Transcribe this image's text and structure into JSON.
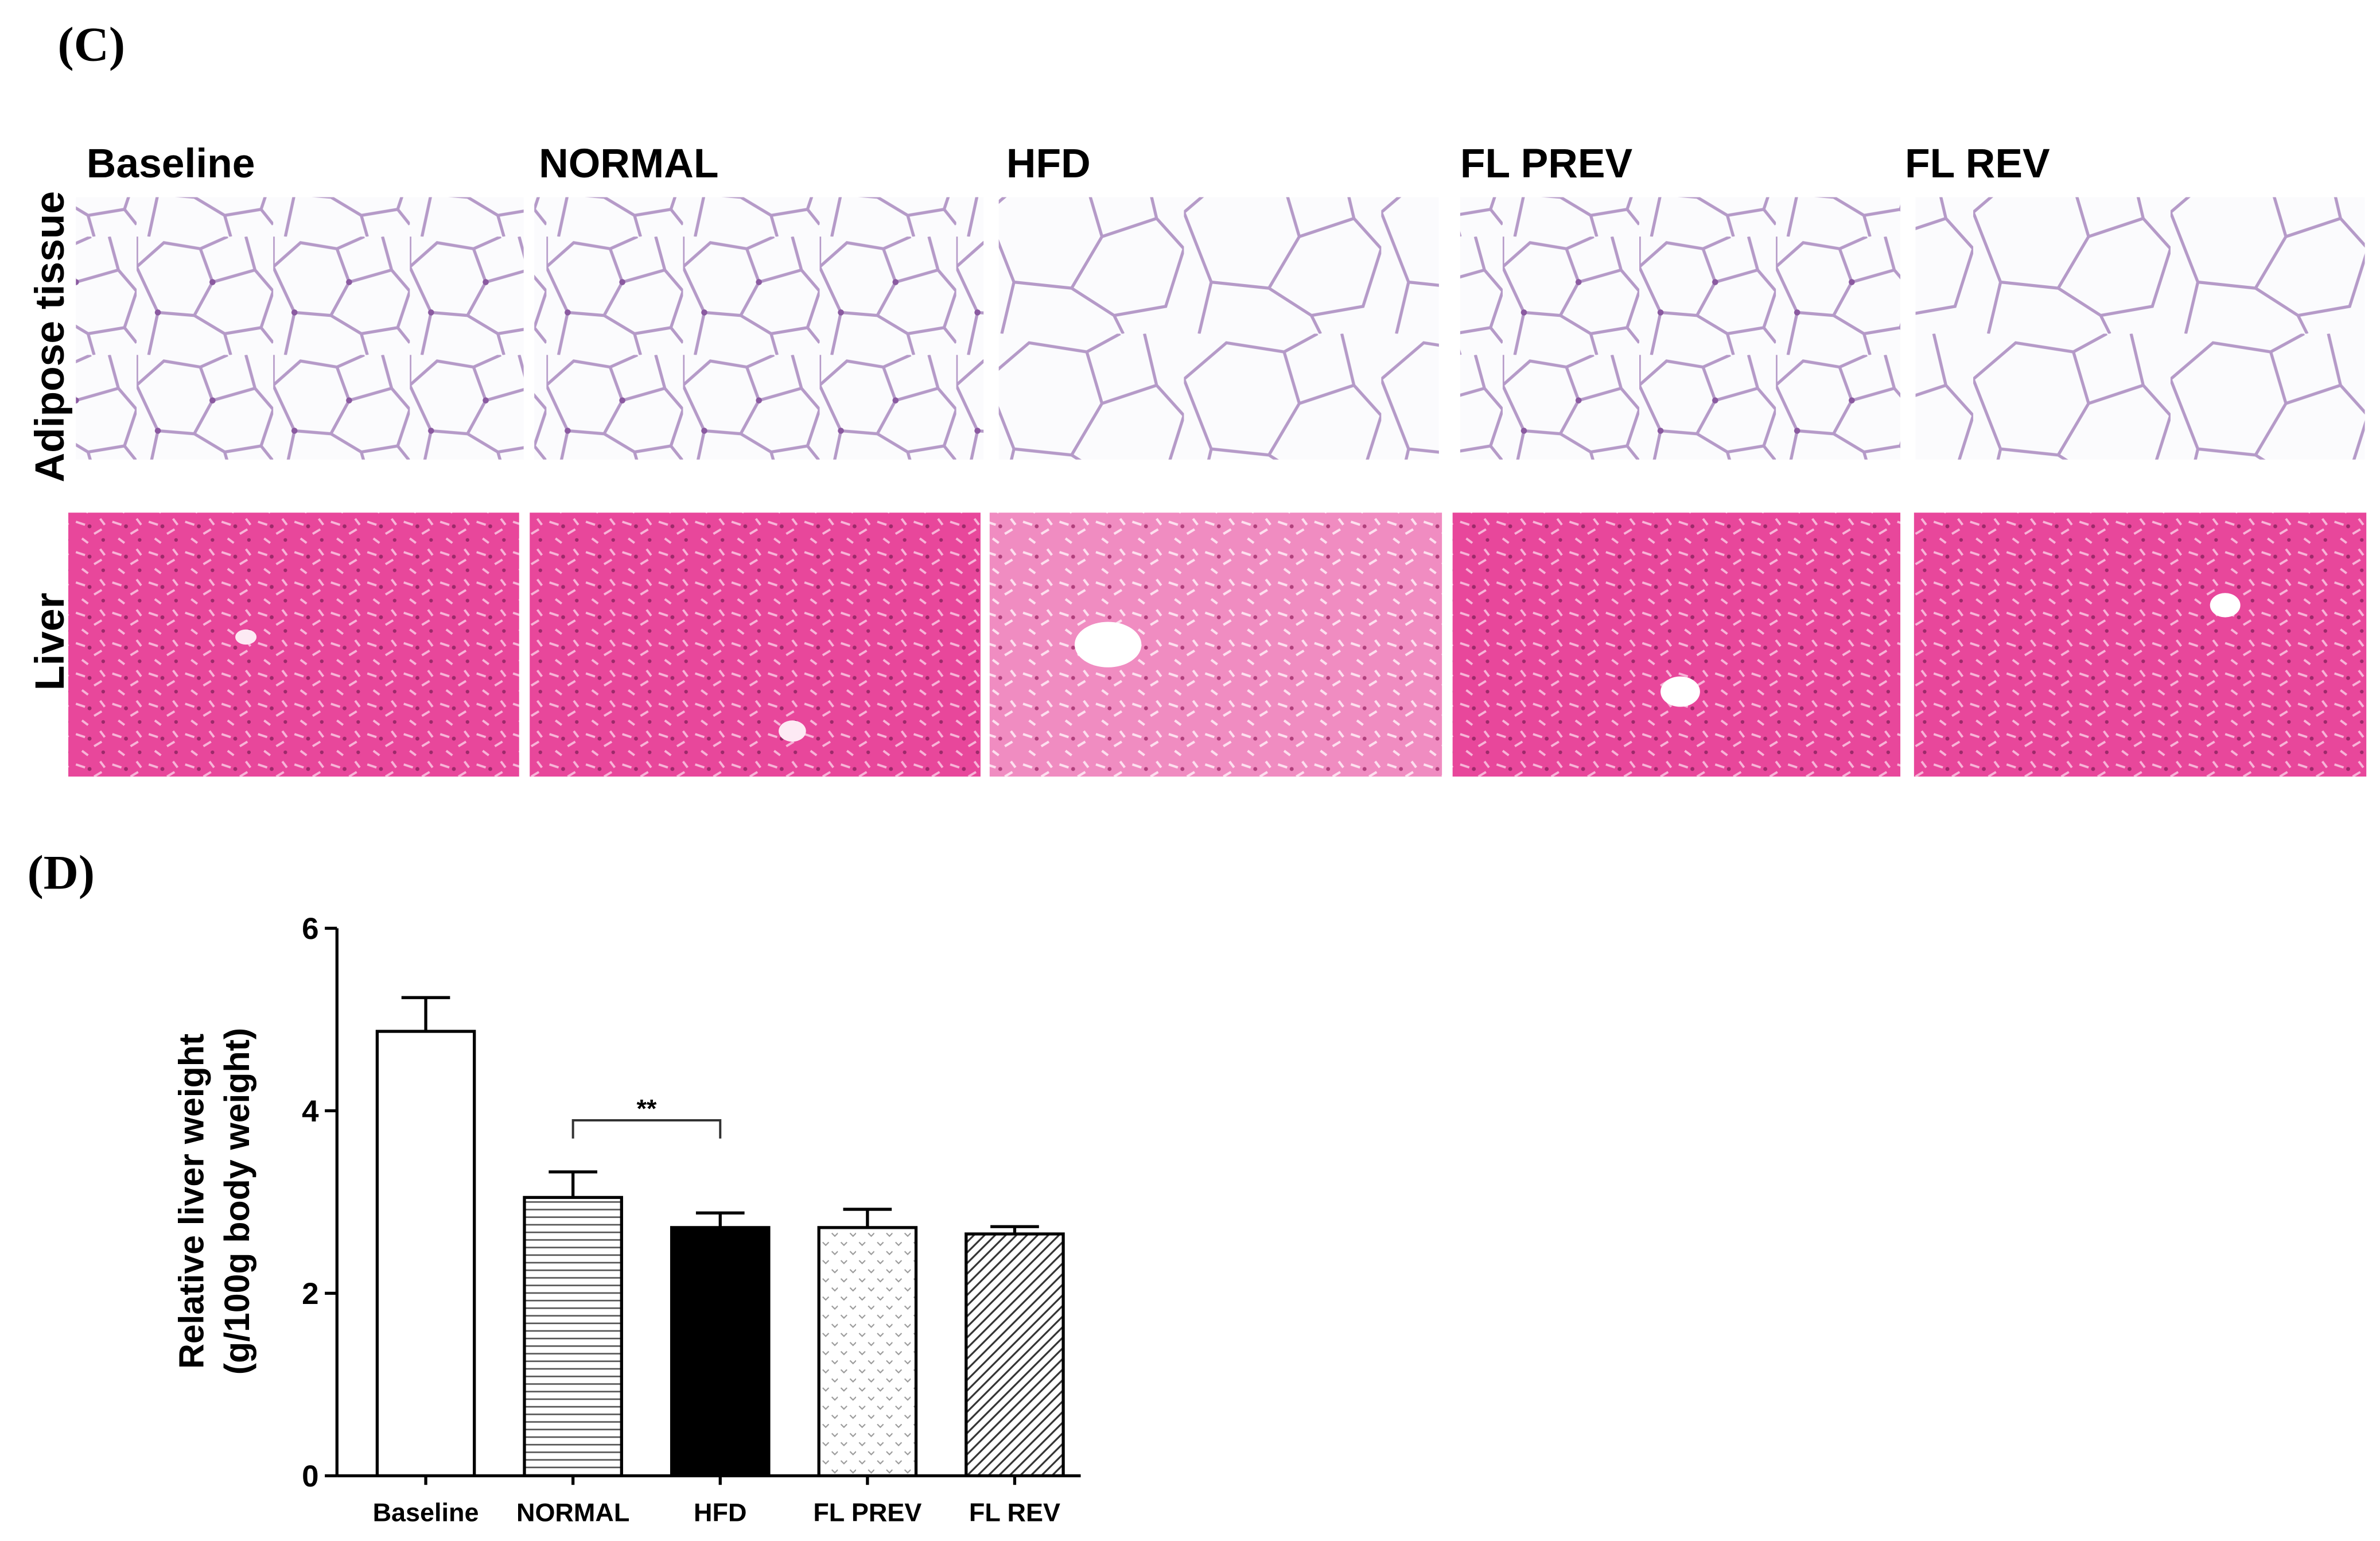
{
  "panel_c": {
    "label": "(C)",
    "columns": [
      "Baseline",
      "NORMAL",
      "HFD",
      "FL PREV",
      "FL REV"
    ],
    "rows": [
      "Adipose tissue",
      "Liver"
    ]
  },
  "panel_d": {
    "label": "(D)"
  },
  "chart_data": {
    "type": "bar",
    "y_label": [
      "Relative liver weight",
      "(g/100g body weight)"
    ],
    "categories": [
      "Baseline",
      "NORMAL",
      "HFD",
      "FL PREV",
      "FL REV"
    ],
    "values": [
      4.87,
      3.05,
      2.72,
      2.72,
      2.65
    ],
    "errors": [
      0.37,
      0.28,
      0.16,
      0.2,
      0.08
    ],
    "patterns": [
      "none",
      "horizontal",
      "solid",
      "dots",
      "diagonal"
    ],
    "color": "#000000",
    "ylim": [
      0,
      6
    ],
    "yticks": [
      0,
      2,
      4,
      6
    ],
    "annotations": [
      {
        "text": "**",
        "from": 1,
        "to": 2
      }
    ]
  }
}
